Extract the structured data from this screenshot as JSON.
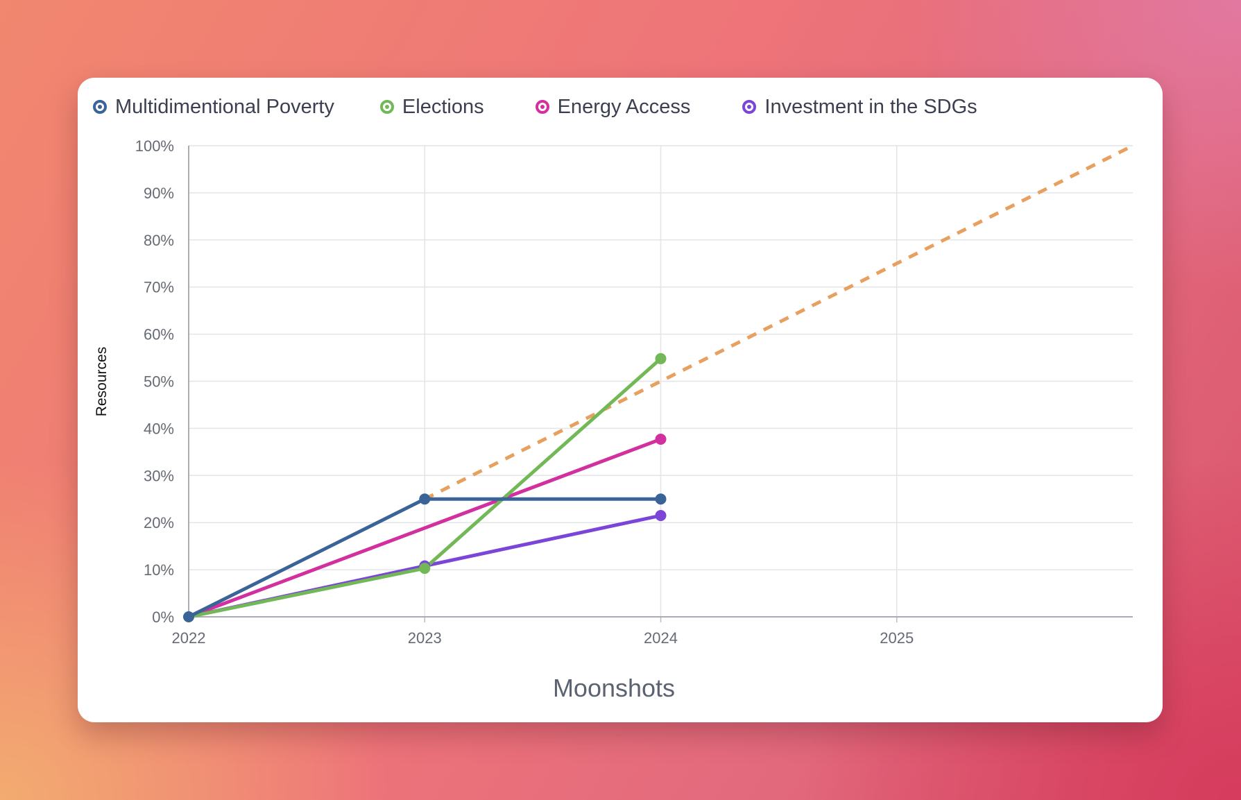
{
  "chart_data": {
    "type": "line",
    "title": "",
    "xlabel": "Moonshots",
    "ylabel": "Resources",
    "x": [
      2022,
      2023,
      2024,
      2025
    ],
    "x_tick_labels": [
      "2022",
      "2023",
      "2024",
      "2025"
    ],
    "xlim": [
      2022,
      2026
    ],
    "ylim": [
      0,
      100
    ],
    "y_ticks": [
      0,
      10,
      20,
      30,
      40,
      50,
      60,
      70,
      80,
      90,
      100
    ],
    "y_tick_labels": [
      "0%",
      "10%",
      "20%",
      "30%",
      "40%",
      "50%",
      "60%",
      "70%",
      "80%",
      "90%",
      "100%"
    ],
    "grid": true,
    "legend_position": "top-left",
    "series": [
      {
        "name": "Multidimentional Poverty",
        "color": "#3a6397",
        "x": [
          2022,
          2023,
          2024
        ],
        "values": [
          0,
          25,
          25
        ]
      },
      {
        "name": "Elections",
        "color": "#72b857",
        "x": [
          2022,
          2023,
          2024
        ],
        "values": [
          0,
          10.3,
          54.8
        ]
      },
      {
        "name": "Energy Access",
        "color": "#d22f9f",
        "x": [
          2022,
          2024
        ],
        "values": [
          0,
          37.7
        ]
      },
      {
        "name": "Investment in the SDGs",
        "color": "#7b45d8",
        "x": [
          2022,
          2023,
          2024
        ],
        "values": [
          0,
          10.8,
          21.5
        ]
      }
    ],
    "target_line": {
      "style": "dashed",
      "color": "#e8a060",
      "x": [
        2023,
        2026
      ],
      "values": [
        25,
        100
      ]
    }
  }
}
